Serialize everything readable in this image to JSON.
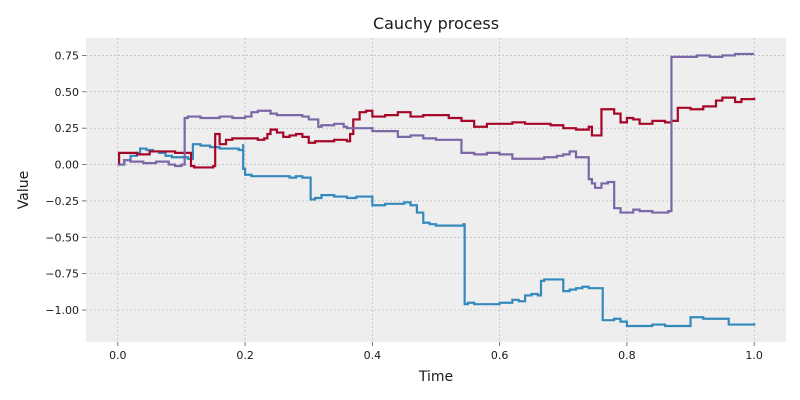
{
  "chart_data": {
    "type": "line",
    "title": "Cauchy process",
    "xlabel": "Time",
    "ylabel": "Value",
    "xlim": [
      -0.05,
      1.05
    ],
    "ylim": [
      -1.22,
      0.87
    ],
    "xticks": [
      0.0,
      0.2,
      0.4,
      0.6,
      0.8,
      1.0
    ],
    "xtick_labels": [
      "0.0",
      "0.2",
      "0.4",
      "0.6",
      "0.8",
      "1.0"
    ],
    "yticks": [
      -1.0,
      -0.75,
      -0.5,
      -0.25,
      0.0,
      0.25,
      0.5,
      0.75
    ],
    "ytick_labels": [
      "−1.00",
      "−0.75",
      "−0.50",
      "−0.25",
      "0.00",
      "0.25",
      "0.50",
      "0.75"
    ],
    "grid": true,
    "background": "#eeeeee",
    "series": [
      {
        "color": "#348abd",
        "x": [
          0.0,
          0.01,
          0.02,
          0.03,
          0.035,
          0.045,
          0.055,
          0.065,
          0.075,
          0.085,
          0.095,
          0.11,
          0.118,
          0.13,
          0.145,
          0.16,
          0.175,
          0.19,
          0.197,
          0.197,
          0.2,
          0.21,
          0.23,
          0.25,
          0.27,
          0.28,
          0.29,
          0.3,
          0.303,
          0.31,
          0.32,
          0.34,
          0.36,
          0.375,
          0.39,
          0.4,
          0.42,
          0.44,
          0.45,
          0.46,
          0.47,
          0.48,
          0.49,
          0.5,
          0.52,
          0.54,
          0.543,
          0.545,
          0.55,
          0.56,
          0.58,
          0.6,
          0.61,
          0.62,
          0.63,
          0.64,
          0.65,
          0.66,
          0.665,
          0.67,
          0.68,
          0.69,
          0.7,
          0.71,
          0.72,
          0.73,
          0.74,
          0.75,
          0.76,
          0.762,
          0.77,
          0.78,
          0.79,
          0.8,
          0.82,
          0.84,
          0.86,
          0.88,
          0.9,
          0.92,
          0.94,
          0.96,
          0.98,
          1.0
        ],
        "y": [
          0.0,
          0.03,
          0.06,
          0.08,
          0.11,
          0.1,
          0.09,
          0.08,
          0.06,
          0.05,
          0.05,
          0.04,
          0.14,
          0.13,
          0.12,
          0.11,
          0.11,
          0.1,
          0.14,
          -0.03,
          -0.07,
          -0.08,
          -0.08,
          -0.08,
          -0.09,
          -0.08,
          -0.09,
          -0.09,
          -0.24,
          -0.23,
          -0.21,
          -0.22,
          -0.23,
          -0.22,
          -0.22,
          -0.28,
          -0.27,
          -0.27,
          -0.26,
          -0.28,
          -0.33,
          -0.4,
          -0.41,
          -0.42,
          -0.42,
          -0.42,
          -0.41,
          -0.96,
          -0.95,
          -0.96,
          -0.96,
          -0.95,
          -0.95,
          -0.93,
          -0.94,
          -0.9,
          -0.89,
          -0.9,
          -0.8,
          -0.79,
          -0.79,
          -0.79,
          -0.87,
          -0.86,
          -0.85,
          -0.84,
          -0.85,
          -0.85,
          -0.85,
          -1.07,
          -1.07,
          -1.06,
          -1.08,
          -1.11,
          -1.11,
          -1.1,
          -1.11,
          -1.11,
          -1.05,
          -1.06,
          -1.06,
          -1.1,
          -1.1,
          -1.09
        ]
      },
      {
        "color": "#a60628",
        "x": [
          0.0,
          0.002,
          0.01,
          0.03,
          0.05,
          0.07,
          0.09,
          0.1,
          0.115,
          0.12,
          0.13,
          0.14,
          0.15,
          0.153,
          0.16,
          0.17,
          0.18,
          0.2,
          0.22,
          0.23,
          0.235,
          0.24,
          0.25,
          0.26,
          0.27,
          0.28,
          0.29,
          0.3,
          0.31,
          0.32,
          0.34,
          0.36,
          0.365,
          0.37,
          0.38,
          0.39,
          0.4,
          0.42,
          0.44,
          0.46,
          0.48,
          0.5,
          0.52,
          0.54,
          0.56,
          0.58,
          0.6,
          0.62,
          0.64,
          0.66,
          0.68,
          0.7,
          0.72,
          0.74,
          0.745,
          0.76,
          0.76,
          0.78,
          0.79,
          0.8,
          0.81,
          0.82,
          0.84,
          0.86,
          0.87,
          0.88,
          0.9,
          0.92,
          0.94,
          0.95,
          0.97,
          0.98,
          1.0
        ],
        "y": [
          0.0,
          0.08,
          0.08,
          0.07,
          0.09,
          0.09,
          0.08,
          0.08,
          -0.01,
          -0.02,
          -0.02,
          -0.02,
          -0.01,
          0.21,
          0.14,
          0.17,
          0.18,
          0.18,
          0.17,
          0.18,
          0.21,
          0.24,
          0.22,
          0.19,
          0.2,
          0.21,
          0.19,
          0.15,
          0.16,
          0.16,
          0.17,
          0.16,
          0.21,
          0.31,
          0.36,
          0.37,
          0.33,
          0.34,
          0.36,
          0.33,
          0.34,
          0.34,
          0.32,
          0.3,
          0.26,
          0.28,
          0.28,
          0.29,
          0.28,
          0.28,
          0.27,
          0.25,
          0.24,
          0.26,
          0.2,
          0.2,
          0.38,
          0.35,
          0.29,
          0.32,
          0.31,
          0.28,
          0.3,
          0.29,
          0.3,
          0.39,
          0.38,
          0.4,
          0.44,
          0.46,
          0.43,
          0.45,
          0.46
        ]
      },
      {
        "color": "#7a68a6",
        "x": [
          0.0,
          0.01,
          0.02,
          0.04,
          0.06,
          0.08,
          0.09,
          0.1,
          0.105,
          0.11,
          0.13,
          0.15,
          0.16,
          0.18,
          0.2,
          0.21,
          0.22,
          0.24,
          0.25,
          0.27,
          0.29,
          0.3,
          0.31,
          0.315,
          0.32,
          0.34,
          0.355,
          0.36,
          0.38,
          0.4,
          0.42,
          0.44,
          0.46,
          0.48,
          0.5,
          0.53,
          0.54,
          0.56,
          0.58,
          0.6,
          0.62,
          0.63,
          0.65,
          0.67,
          0.69,
          0.7,
          0.71,
          0.72,
          0.73,
          0.74,
          0.745,
          0.75,
          0.76,
          0.77,
          0.78,
          0.79,
          0.8,
          0.81,
          0.82,
          0.84,
          0.86,
          0.865,
          0.87,
          0.89,
          0.91,
          0.93,
          0.95,
          0.97,
          0.99,
          1.0
        ],
        "y": [
          0.0,
          0.03,
          0.02,
          0.01,
          0.02,
          0.0,
          -0.01,
          0.0,
          0.32,
          0.33,
          0.32,
          0.32,
          0.33,
          0.32,
          0.33,
          0.36,
          0.37,
          0.35,
          0.34,
          0.34,
          0.33,
          0.31,
          0.31,
          0.26,
          0.27,
          0.28,
          0.26,
          0.25,
          0.25,
          0.23,
          0.23,
          0.19,
          0.2,
          0.18,
          0.17,
          0.17,
          0.08,
          0.07,
          0.08,
          0.07,
          0.04,
          0.04,
          0.04,
          0.05,
          0.06,
          0.07,
          0.09,
          0.05,
          0.05,
          -0.1,
          -0.13,
          -0.16,
          -0.13,
          -0.12,
          -0.3,
          -0.33,
          -0.33,
          -0.31,
          -0.32,
          -0.33,
          -0.33,
          -0.32,
          0.74,
          0.74,
          0.75,
          0.74,
          0.75,
          0.76,
          0.76,
          0.76
        ]
      }
    ]
  }
}
